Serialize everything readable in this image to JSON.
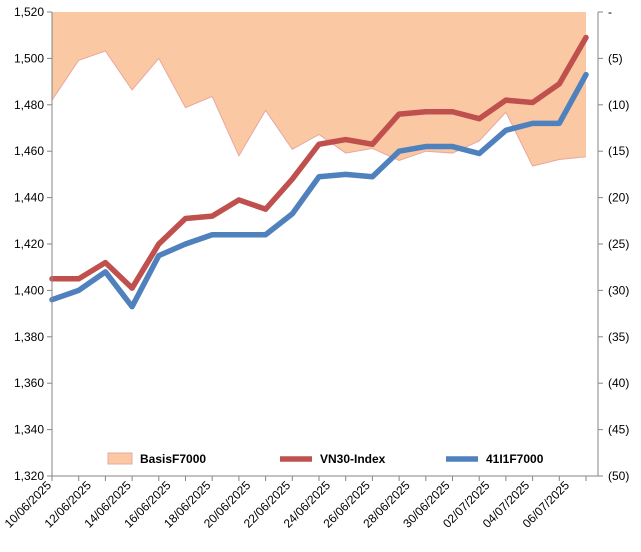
{
  "chart_data": {
    "type": "line",
    "title": "",
    "legend_position": "bottom-inside",
    "grid": false,
    "x": [
      "10/06/2025",
      "11/06/2025",
      "12/06/2025",
      "13/06/2025",
      "16/06/2025",
      "17/06/2025",
      "18/06/2025",
      "19/06/2025",
      "20/06/2025",
      "23/06/2025",
      "24/06/2025",
      "25/06/2025",
      "26/06/2025",
      "27/06/2025",
      "30/06/2025",
      "01/07/2025",
      "02/07/2025",
      "03/07/2025",
      "04/07/2025",
      "07/07/2025",
      "08/07/2025"
    ],
    "x_tick_labels": [
      "10/06/2025",
      "12/06/2025",
      "14/06/2025",
      "16/06/2025",
      "18/06/2025",
      "20/06/2025",
      "22/06/2025",
      "24/06/2025",
      "26/06/2025",
      "28/06/2025",
      "30/06/2025",
      "02/07/2025",
      "04/07/2025",
      "06/07/2025"
    ],
    "y_left": {
      "min": 1320,
      "max": 1520,
      "step": 20,
      "tick_labels": [
        "1,320",
        "1,340",
        "1,360",
        "1,380",
        "1,400",
        "1,420",
        "1,440",
        "1,460",
        "1,480",
        "1,500",
        "1,520"
      ]
    },
    "y_right": {
      "min": 0,
      "max": 50,
      "step": 5,
      "reversed": true,
      "tick_labels": [
        "-",
        "(5)",
        "(10)",
        "(15)",
        "(20)",
        "(25)",
        "(30)",
        "(35)",
        "(40)",
        "(45)",
        "(50)"
      ]
    },
    "series": [
      {
        "name": "BasisF7000",
        "kind": "area",
        "axis": "right",
        "color": "#FAC8A3",
        "stroke": "#E9A7A0",
        "values": [
          -9.5,
          -5.2,
          -4.2,
          -8.4,
          -5.0,
          -10.3,
          -9.1,
          -15.5,
          -10.6,
          -14.8,
          -13.2,
          -15.2,
          -14.7,
          -16.0,
          -15.0,
          -15.2,
          -13.9,
          -10.8,
          -16.6,
          -15.9,
          -15.6
        ]
      },
      {
        "name": "VN30-Index",
        "kind": "line",
        "axis": "left",
        "color": "#C0504D",
        "values": [
          1405,
          1405,
          1412,
          1401,
          1420,
          1431,
          1432,
          1439,
          1435,
          1448,
          1463,
          1465,
          1463,
          1476,
          1477,
          1477,
          1474,
          1482,
          1481,
          1489,
          1509
        ]
      },
      {
        "name": "41I1F7000",
        "kind": "line",
        "axis": "left",
        "color": "#4F81BD",
        "values": [
          1396,
          1400,
          1408,
          1393,
          1415,
          1420,
          1424,
          1424,
          1424,
          1433,
          1449,
          1450,
          1449,
          1460,
          1462,
          1462,
          1459,
          1469,
          1472,
          1472,
          1493
        ]
      }
    ]
  }
}
